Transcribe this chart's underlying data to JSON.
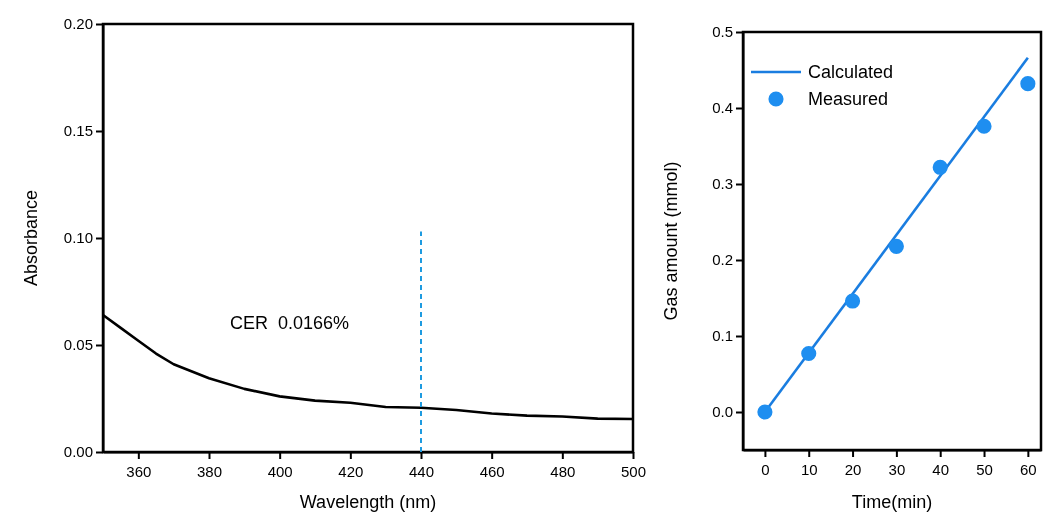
{
  "chart_data": [
    {
      "type": "line",
      "xlabel": "Wavelength (nm)",
      "ylabel": "Absorbance",
      "xlim": [
        350,
        500
      ],
      "ylim": [
        0,
        0.2
      ],
      "xticks": [
        360,
        380,
        400,
        420,
        440,
        460,
        480,
        500
      ],
      "yticks": [
        {
          "value": 0,
          "label": "0.00"
        },
        {
          "value": 0.05,
          "label": "0.05"
        },
        {
          "value": 0.1,
          "label": "0.10"
        },
        {
          "value": 0.15,
          "label": "0.15"
        },
        {
          "value": 0.2,
          "label": "0.20"
        }
      ],
      "annotations": [
        "CER  0.0166%"
      ],
      "legend": false,
      "series": [
        {
          "color": "#000000",
          "x": [
            350,
            355,
            360,
            365,
            370,
            380,
            390,
            400,
            410,
            420,
            430,
            440,
            450,
            460,
            470,
            480,
            490,
            500
          ],
          "values": [
            0.064,
            0.058,
            0.052,
            0.046,
            0.041,
            0.0345,
            0.0295,
            0.026,
            0.024,
            0.023,
            0.021,
            0.0207,
            0.0196,
            0.018,
            0.017,
            0.0166,
            0.0156,
            0.0154
          ]
        },
        {
          "color": "#1e9be0",
          "line_style": "dashed",
          "x": [
            440,
            440
          ],
          "values": [
            0,
            0.103
          ]
        }
      ]
    },
    {
      "type": "line",
      "xlabel": "Time(min)",
      "ylabel": "Gas amount (mmol)",
      "xlim": [
        -5,
        63
      ],
      "ylim": [
        -0.05,
        0.5
      ],
      "xticks": [
        0,
        10,
        20,
        30,
        40,
        50,
        60
      ],
      "yticks": [
        {
          "value": 0,
          "label": "0.0"
        },
        {
          "value": 0.1,
          "label": "0.1"
        },
        {
          "value": 0.2,
          "label": "0.2"
        },
        {
          "value": 0.3,
          "label": "0.3"
        },
        {
          "value": 0.4,
          "label": "0.4"
        },
        {
          "value": 0.5,
          "label": "0.5"
        }
      ],
      "legend": "top left",
      "series": [
        {
          "name": "Calculated",
          "color": "#1a7de0",
          "x": [
            0,
            60
          ],
          "values": [
            0,
            0.466
          ]
        },
        {
          "name": "Measured",
          "type": "scatter",
          "marker": "circle",
          "color": "#1e8ef0",
          "x": [
            0,
            10,
            20,
            30,
            40,
            50,
            60
          ],
          "values": [
            0,
            0.077,
            0.146,
            0.218,
            0.322,
            0.376,
            0.432
          ]
        }
      ]
    }
  ]
}
